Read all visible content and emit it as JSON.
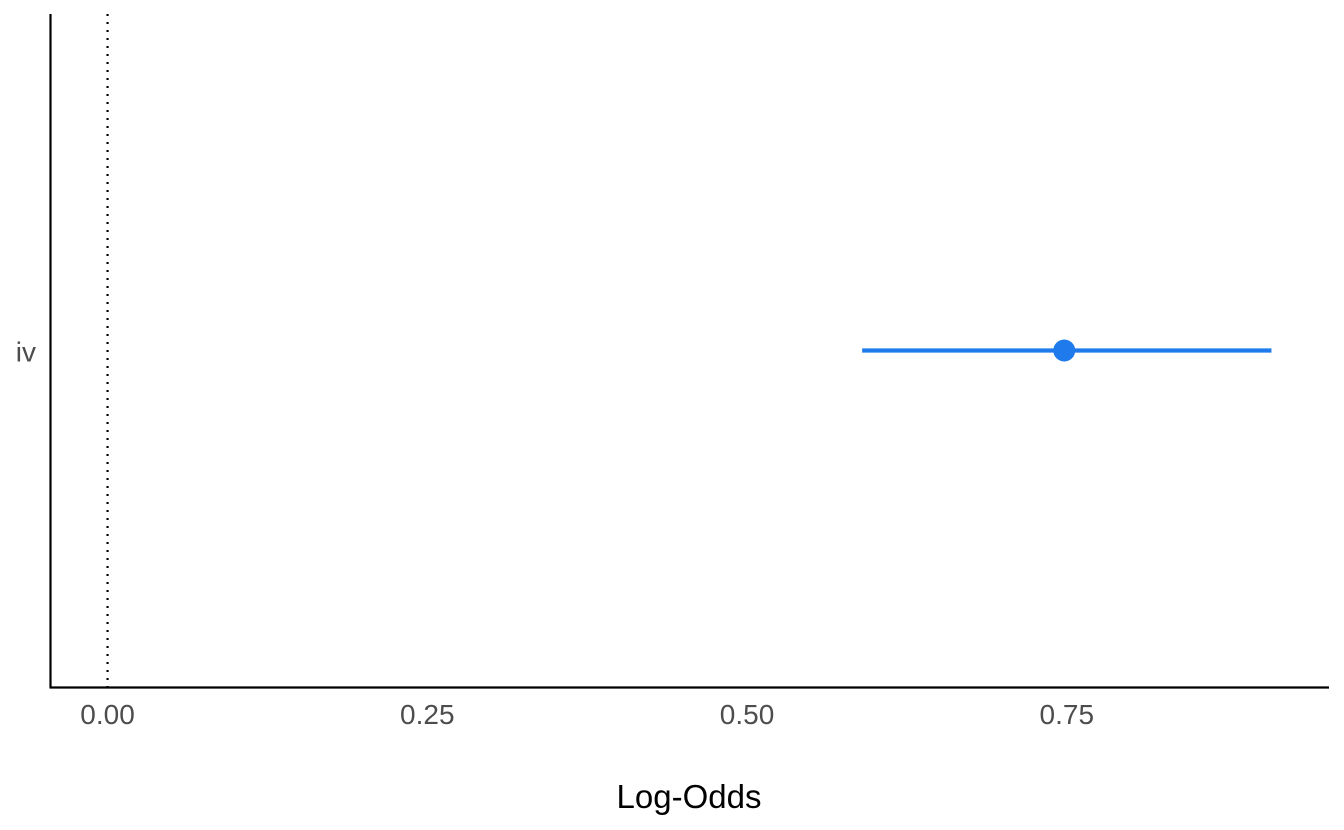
{
  "chart_data": {
    "type": "forest",
    "title": "",
    "xlabel": "Log-Odds",
    "ylabel": "",
    "xlim": [
      -0.045,
      0.955
    ],
    "x_ticks": [
      0,
      0.25,
      0.5,
      0.75
    ],
    "x_tick_labels": [
      "0.00",
      "0.25",
      "0.50",
      "0.75"
    ],
    "reference_line": {
      "x": 0,
      "style": "dotted",
      "color": "#000000"
    },
    "categories": [
      "iv"
    ],
    "series": [
      {
        "estimates": [
          0.748
        ],
        "ci_low": [
          0.59
        ],
        "ci_high": [
          0.91
        ],
        "color": "#1F7BEB"
      }
    ],
    "grid": false,
    "legend": "none"
  }
}
